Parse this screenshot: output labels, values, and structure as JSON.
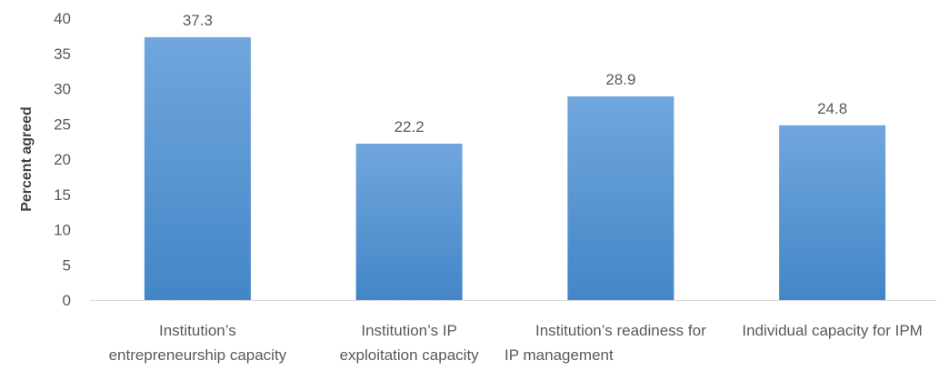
{
  "chart_data": {
    "type": "bar",
    "title": "",
    "xlabel": "",
    "ylabel": "Percent agreed",
    "ylim": [
      0,
      40
    ],
    "yticks": [
      0,
      5,
      10,
      15,
      20,
      25,
      30,
      35,
      40
    ],
    "grid": false,
    "legend": "none",
    "categories": [
      [
        "Institution’s",
        "entrepreneurship  capacity"
      ],
      [
        "Institution’s IP",
        "exploitation capacity"
      ],
      [
        "Institution’s readiness for",
        "IP management"
      ],
      [
        "Individual capacity for IPM"
      ]
    ],
    "values": [
      37.3,
      22.2,
      28.9,
      24.8
    ],
    "data_labels": [
      "37.3",
      "22.2",
      "28.9",
      "24.8"
    ],
    "colors": {
      "bar_top": "#70a6dd",
      "bar_bottom": "#4386c7",
      "axis": "#d9d9d9",
      "text": "#595959"
    }
  }
}
